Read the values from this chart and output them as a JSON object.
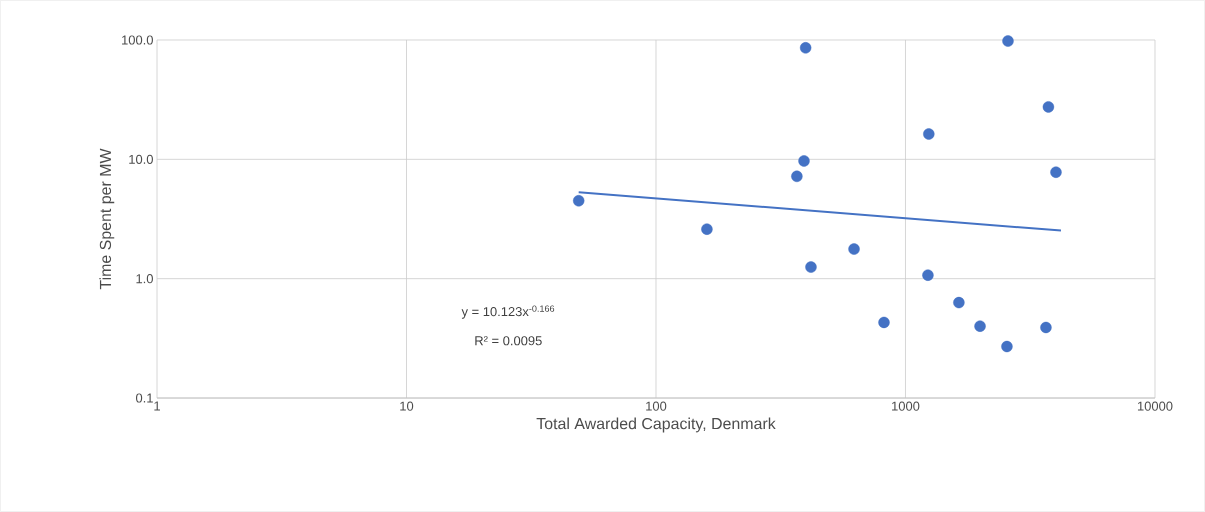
{
  "chart_data": {
    "type": "scatter",
    "xlabel": "Total Awarded Capacity, Denmark",
    "ylabel": "Time Spent per MW",
    "log": "xy",
    "grid": true,
    "xlim": [
      1,
      10000
    ],
    "xticks": [
      1,
      10,
      100,
      1000,
      10000
    ],
    "ylim": [
      0.1,
      100
    ],
    "yticks": [
      {
        "value": 0.1,
        "label": "0.1"
      },
      {
        "value": 1,
        "label": "1.0"
      },
      {
        "value": 10,
        "label": "10.0"
      },
      {
        "value": 100,
        "label": "100.0"
      }
    ],
    "series": [
      {
        "color": "#4472c4",
        "marker": "circle",
        "x": [
          49,
          160,
          367,
          392,
          398,
          418,
          622,
          820,
          1230,
          1240,
          1637,
          1990,
          2575,
          2550,
          3656,
          3740,
          4010
        ],
        "values": [
          4.5,
          2.6,
          7.2,
          9.7,
          86,
          1.25,
          1.77,
          0.43,
          1.07,
          16.3,
          0.63,
          0.4,
          98,
          0.27,
          0.39,
          27.5,
          7.8
        ]
      },
      {
        "type": "line",
        "color": "#4472c4",
        "marker": "none",
        "line_style": "solid",
        "x": [
          49,
          4200
        ],
        "values": [
          5.3,
          2.53
        ]
      }
    ],
    "annotations": [
      "y = 10.123x$^{-0.166}$",
      "R² = 0.0095"
    ]
  }
}
